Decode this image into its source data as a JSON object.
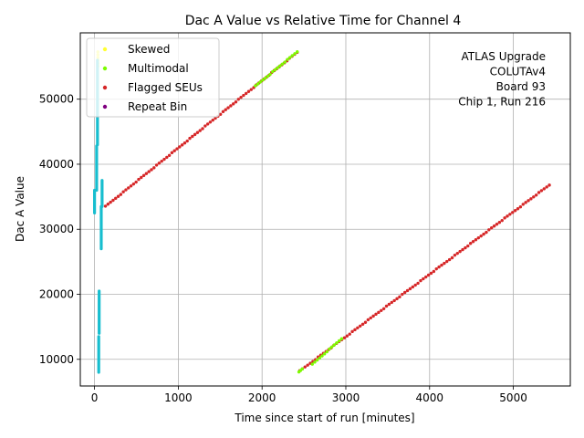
{
  "chart_data": {
    "type": "scatter",
    "title": "Dac A Value vs Relative Time for Channel 4",
    "xlabel": "Time since start of run [minutes]",
    "ylabel": "Dac A Value",
    "xlim": [
      -170,
      5680
    ],
    "ylim": [
      5900,
      60200
    ],
    "xticks": [
      0,
      1000,
      2000,
      3000,
      4000,
      5000
    ],
    "yticks": [
      10000,
      20000,
      30000,
      40000,
      50000
    ],
    "grid": true,
    "legend_position": "upper-left",
    "annotation": [
      "ATLAS Upgrade",
      "COLUTAv4",
      "Board 93",
      "Chip 1, Run 216"
    ],
    "legend": [
      {
        "label": "Skewed",
        "color": "#ffff33"
      },
      {
        "label": "Multimodal",
        "color": "#7cfc00"
      },
      {
        "label": "Flagged SEUs",
        "color": "#d62728"
      },
      {
        "label": "Repeat Bin",
        "color": "#800080"
      }
    ],
    "series": [
      {
        "name": "Flagged SEUs",
        "color": "#d62728",
        "segments": [
          {
            "x": [
              130,
              2420
            ],
            "y": [
              33500,
              57200
            ]
          },
          {
            "x": [
              2450,
              5430
            ],
            "y": [
              8200,
              36800
            ]
          }
        ]
      },
      {
        "name": "Multimodal",
        "color": "#7cfc00",
        "segments": [
          {
            "x": [
              1920,
              2420
            ],
            "y": [
              52000,
              57300
            ]
          },
          {
            "x": [
              2600,
              2950
            ],
            "y": [
              9200,
              13200
            ]
          },
          {
            "x": [
              2440,
              2480
            ],
            "y": [
              8000,
              8500
            ]
          }
        ]
      },
      {
        "name": "Skewed",
        "color": "#ffff33",
        "segments": [
          {
            "x": [
              40,
              40
            ],
            "y": [
              55000,
              57300
            ]
          }
        ]
      },
      {
        "name": "Repeat Bin",
        "color": "#800080",
        "segments": []
      },
      {
        "name": "",
        "color": "#17becf",
        "vertical_segments": [
          {
            "x": 0,
            "y": [
              32500,
              36000
            ]
          },
          {
            "x": 25,
            "y": [
              36000,
              42800
            ]
          },
          {
            "x": 35,
            "y": [
              43000,
              56000
            ]
          },
          {
            "x": 50,
            "y": [
              8000,
              13500
            ]
          },
          {
            "x": 55,
            "y": [
              14000,
              20500
            ]
          },
          {
            "x": 80,
            "y": [
              27000,
              33500
            ]
          },
          {
            "x": 90,
            "y": [
              33500,
              37500
            ]
          }
        ]
      }
    ]
  }
}
